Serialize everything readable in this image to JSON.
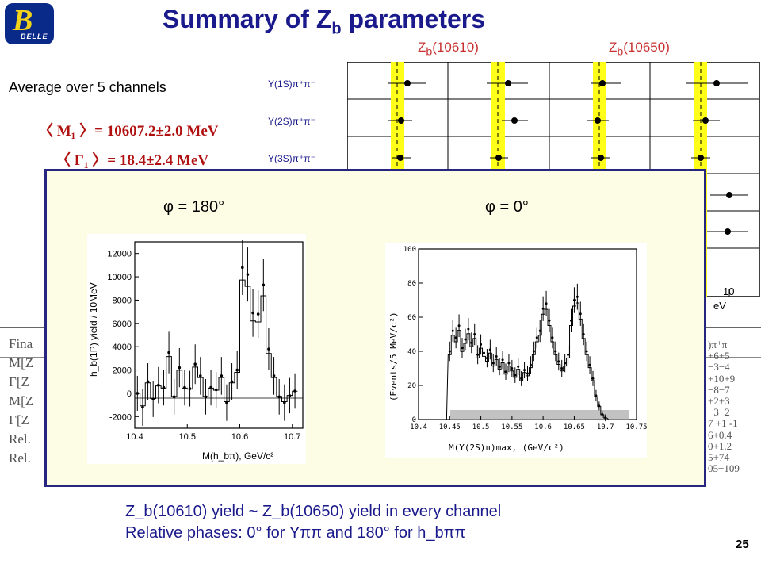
{
  "header": {
    "title": "Summary of Z",
    "title_sub": "b",
    "title_rest": " parameters",
    "logo_text": "BELLE"
  },
  "left": {
    "average_label": "Average over 5 channels",
    "m1": "〈 M₁ 〉= 10607.2±2.0 MeV",
    "g1": "〈 Γ₁ 〉= 18.4±2.4 MeV",
    "third_partial": "〈"
  },
  "summary_plot": {
    "columns": [
      "Z",
      "Z"
    ],
    "column_subs": [
      "b",
      "b"
    ],
    "column_rests": [
      "(10610)",
      "(10650)"
    ],
    "channels": [
      "Υ(1S)π⁺π⁻",
      "Υ(2S)π⁺π⁻",
      "Υ(3S)π⁺π⁻"
    ],
    "axis_tick": "10",
    "axis_unit_partial": "eV"
  },
  "table_bg": {
    "rows": [
      "Fina",
      "M[Z",
      "Γ[Z",
      "M[Z",
      "Γ[Z",
      "Rel.",
      "Rel."
    ],
    "right_values": [
      ")π⁺π⁻",
      "+6+5",
      "−3−4",
      "+10+9",
      "−8−7",
      "+2+3",
      "−3−2",
      "7 +1 -1",
      "6+0.4",
      "0+1.2",
      "5+74",
      "05−109"
    ]
  },
  "overlay": {
    "phi_left": "φ = 180°",
    "phi_right": "φ = 0°",
    "left_plot": {
      "ylabel": "h_b(1P) yield / 10MeV",
      "xlabel": "M(h_bπ), GeV/c²",
      "yticks": [
        "12000",
        "10000",
        "8000",
        "6000",
        "4000",
        "2000",
        "0",
        "-2000"
      ],
      "xticks": [
        "10.4",
        "10.5",
        "10.6",
        "10.7"
      ]
    },
    "right_plot": {
      "ylabel": "(Events/5 MeV/c²)",
      "xlabel": "M(Υ(2S)π)max, (GeV/c²)",
      "yticks": [
        "100",
        "80",
        "60",
        "40",
        "20",
        "0"
      ],
      "xticks": [
        "10.4",
        "10.45",
        "10.5",
        "10.55",
        "10.6",
        "10.65",
        "10.7",
        "10.75"
      ]
    }
  },
  "bottom": {
    "line1": "Z_b(10610) yield ~ Z_b(10650) yield in every channel",
    "line2": "Relative phases: 0° for Υππ and 180° for h_bππ"
  },
  "page_number": "25",
  "chart_data": [
    {
      "type": "scatter",
      "title": "",
      "xlabel": "M(h_bπ), GeV/c²",
      "ylabel": "h_b(1P) yield / 10MeV",
      "xlim": [
        10.4,
        10.72
      ],
      "ylim": [
        -3000,
        13000
      ],
      "x": [
        10.405,
        10.415,
        10.425,
        10.435,
        10.445,
        10.455,
        10.465,
        10.475,
        10.485,
        10.495,
        10.505,
        10.515,
        10.525,
        10.535,
        10.545,
        10.555,
        10.565,
        10.575,
        10.585,
        10.595,
        10.605,
        10.615,
        10.625,
        10.635,
        10.645,
        10.655,
        10.665,
        10.675,
        10.685,
        10.695,
        10.705
      ],
      "values": [
        0,
        -1200,
        1000,
        -500,
        700,
        500,
        3500,
        -300,
        2200,
        500,
        400,
        2500,
        1500,
        -300,
        500,
        300,
        1500,
        -800,
        1000,
        2000,
        10800,
        10200,
        6900,
        6800,
        9300,
        3800,
        1500,
        -300,
        -800,
        -200,
        200
      ]
    },
    {
      "type": "bar",
      "title": "",
      "xlabel": "M(Υ(2S)π)max, (GeV/c²)",
      "ylabel": "(Events/5 MeV/c²)",
      "xlim": [
        10.4,
        10.75
      ],
      "ylim": [
        0,
        100
      ],
      "x": [
        10.45,
        10.455,
        10.46,
        10.465,
        10.47,
        10.475,
        10.48,
        10.485,
        10.49,
        10.495,
        10.5,
        10.505,
        10.51,
        10.515,
        10.52,
        10.525,
        10.53,
        10.535,
        10.54,
        10.545,
        10.55,
        10.555,
        10.56,
        10.565,
        10.57,
        10.575,
        10.58,
        10.585,
        10.59,
        10.595,
        10.6,
        10.605,
        10.61,
        10.615,
        10.62,
        10.625,
        10.63,
        10.635,
        10.64,
        10.645,
        10.65,
        10.655,
        10.66,
        10.665,
        10.67,
        10.675,
        10.68,
        10.685,
        10.69,
        10.695,
        10.7
      ],
      "values": [
        40,
        52,
        48,
        55,
        42,
        47,
        53,
        45,
        50,
        38,
        44,
        39,
        36,
        41,
        33,
        37,
        31,
        35,
        28,
        33,
        30,
        26,
        31,
        24,
        29,
        27,
        32,
        40,
        48,
        52,
        65,
        68,
        58,
        48,
        40,
        34,
        30,
        33,
        38,
        58,
        70,
        72,
        62,
        50,
        40,
        32,
        24,
        14,
        8,
        3,
        1
      ]
    }
  ]
}
